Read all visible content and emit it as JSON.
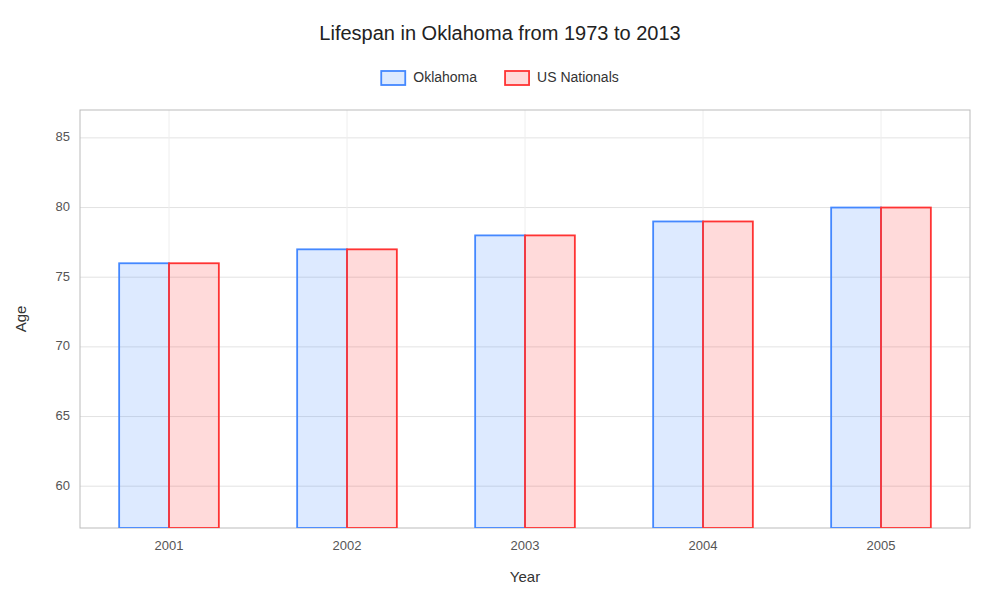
{
  "chart_data": {
    "type": "bar",
    "title": "Lifespan in Oklahoma from 1973 to 2013",
    "xlabel": "Year",
    "ylabel": "Age",
    "categories": [
      "2001",
      "2002",
      "2003",
      "2004",
      "2005"
    ],
    "series": [
      {
        "name": "Oklahoma",
        "color": "#4488ff",
        "values": [
          76,
          77,
          78,
          79,
          80
        ]
      },
      {
        "name": "US Nationals",
        "color": "#ff3333",
        "values": [
          76,
          77,
          78,
          79,
          80
        ]
      }
    ],
    "ylim": [
      57,
      87
    ],
    "yticks": [
      60,
      65,
      70,
      75,
      80,
      85
    ],
    "grid": true,
    "legend": "top"
  }
}
